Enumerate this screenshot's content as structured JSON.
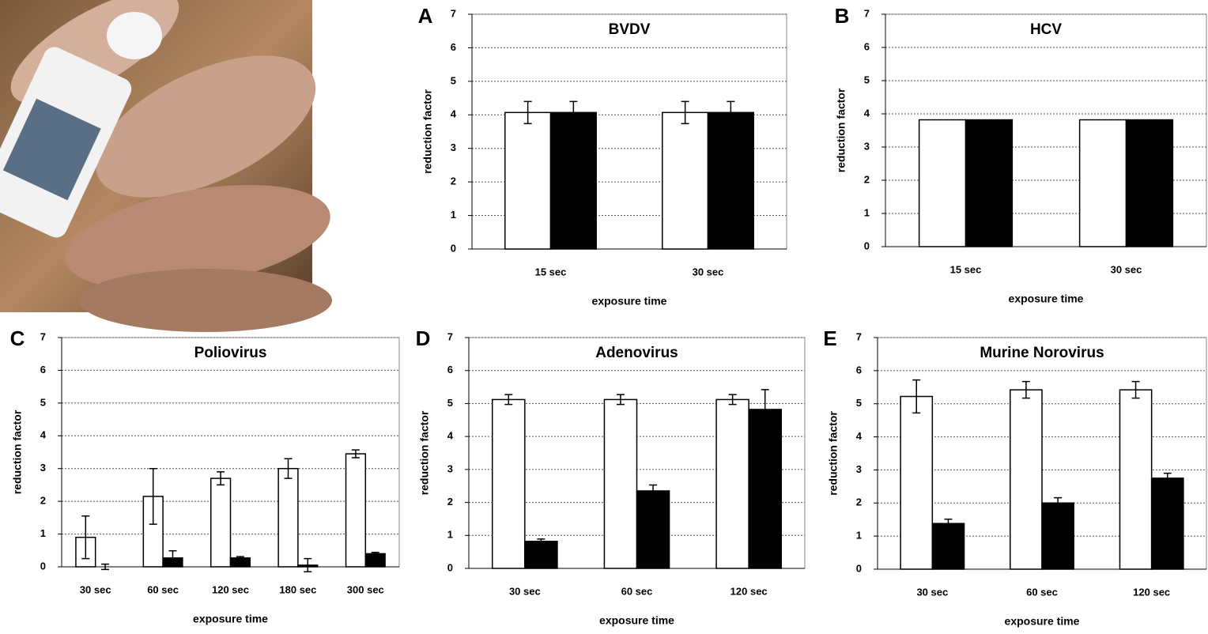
{
  "chart_data": [
    {
      "type": "bar",
      "label": "A",
      "title": "BVDV",
      "xlabel": "exposure time",
      "ylabel": "reduction factor",
      "categories": [
        "15 sec",
        "30 sec"
      ],
      "series": [
        {
          "color": "#ffffff",
          "values": [
            4.07,
            4.07
          ],
          "errors": [
            0.33,
            0.33
          ]
        },
        {
          "color": "#000000",
          "values": [
            4.07,
            4.07
          ],
          "errors": [
            0.33,
            0.33
          ]
        }
      ],
      "ylim": [
        0,
        7
      ],
      "yticks": [
        0,
        1,
        2,
        3,
        4,
        5,
        6,
        7
      ],
      "grid": true
    },
    {
      "type": "bar",
      "label": "B",
      "title": "HCV",
      "xlabel": "exposure time",
      "ylabel": "reduction factor",
      "categories": [
        "15 sec",
        "30 sec"
      ],
      "series": [
        {
          "color": "#ffffff",
          "values": [
            3.82,
            3.82
          ]
        },
        {
          "color": "#000000",
          "values": [
            3.82,
            3.82
          ]
        }
      ],
      "ylim": [
        0,
        7
      ],
      "yticks": [
        0,
        1,
        2,
        3,
        4,
        5,
        6,
        7
      ],
      "grid": true
    },
    {
      "type": "bar",
      "label": "C",
      "title": "Poliovirus",
      "xlabel": "exposure time",
      "ylabel": "reduction factor",
      "categories": [
        "30 sec",
        "60 sec",
        "120 sec",
        "180 sec",
        "300 sec"
      ],
      "series": [
        {
          "color": "#ffffff",
          "values": [
            0.9,
            2.15,
            2.7,
            3.0,
            3.45
          ],
          "errors": [
            0.65,
            0.85,
            0.2,
            0.3,
            0.12
          ]
        },
        {
          "color": "#000000",
          "values": [
            0,
            0.27,
            0.27,
            0.05,
            0.4
          ],
          "errors": [
            0.08,
            0.22,
            0.04,
            0.2,
            0.04
          ]
        }
      ],
      "ylim": [
        0,
        7
      ],
      "yticks": [
        0,
        1,
        2,
        3,
        4,
        5,
        6,
        7
      ],
      "grid": true
    },
    {
      "type": "bar",
      "label": "D",
      "title": "Adenovirus",
      "xlabel": "exposure time",
      "ylabel": "reduction factor",
      "categories": [
        "30 sec",
        "60 sec",
        "120 sec"
      ],
      "series": [
        {
          "color": "#ffffff",
          "values": [
            5.12,
            5.12,
            5.12
          ],
          "errors": [
            0.15,
            0.15,
            0.15
          ]
        },
        {
          "color": "#000000",
          "values": [
            0.82,
            2.35,
            4.82
          ],
          "errors": [
            0.07,
            0.18,
            0.6
          ]
        }
      ],
      "ylim": [
        0,
        7
      ],
      "yticks": [
        0,
        1,
        2,
        3,
        4,
        5,
        6,
        7
      ],
      "grid": true
    },
    {
      "type": "bar",
      "label": "E",
      "title": "Murine Norovirus",
      "xlabel": "exposure time",
      "ylabel": "reduction factor",
      "categories": [
        "30 sec",
        "60 sec",
        "120 sec"
      ],
      "series": [
        {
          "color": "#ffffff",
          "values": [
            5.22,
            5.42,
            5.42
          ],
          "errors": [
            0.5,
            0.25,
            0.25
          ]
        },
        {
          "color": "#000000",
          "values": [
            1.38,
            2.0,
            2.75
          ],
          "errors": [
            0.13,
            0.16,
            0.15
          ]
        }
      ],
      "ylim": [
        0,
        7
      ],
      "yticks": [
        0,
        1,
        2,
        3,
        4,
        5,
        6,
        7
      ],
      "grid": true
    }
  ]
}
